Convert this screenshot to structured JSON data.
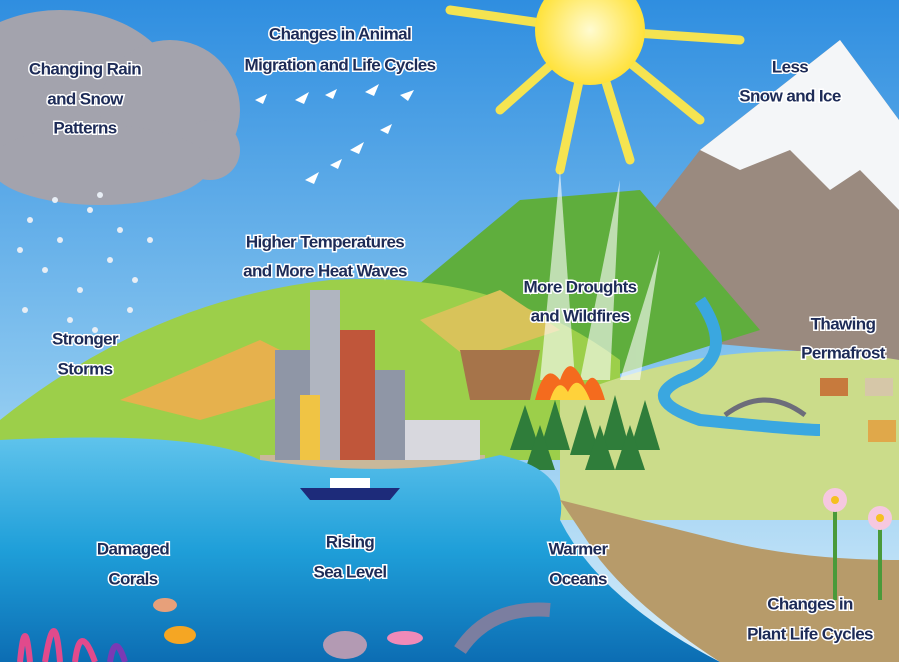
{
  "labels": [
    [
      "Changing Rain",
      "and Snow",
      "Patterns"
    ],
    [
      "Changes in Animal",
      "Migration and Life Cycles"
    ],
    [
      "Less",
      "Snow and Ice"
    ],
    [
      "Higher Temperatures",
      "and More Heat Waves"
    ],
    [
      "More Droughts",
      "and Wildfires"
    ],
    [
      "Stronger",
      "Storms"
    ],
    [
      "Thawing",
      "Permafrost"
    ],
    [
      "Damaged",
      "Corals"
    ],
    [
      "Rising",
      "Sea Level"
    ],
    [
      "Warmer",
      "Oceans"
    ],
    [
      "Changes in",
      "Plant Life Cycles"
    ]
  ]
}
